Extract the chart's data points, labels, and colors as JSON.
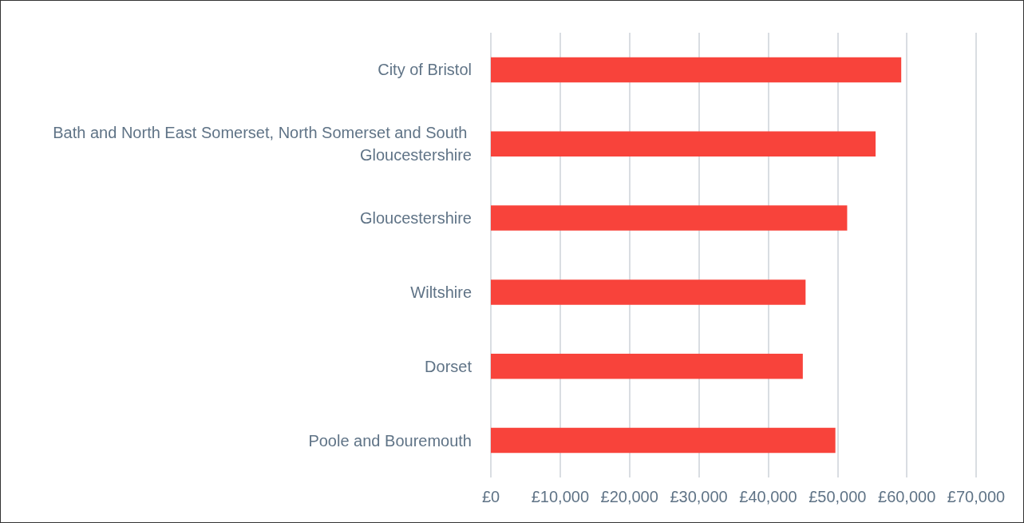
{
  "chart_data": {
    "type": "bar",
    "orientation": "horizontal",
    "categories": [
      "City of Bristol",
      "Bath and North East Somerset, North Somerset and South Gloucestershire",
      "Gloucestershire",
      "Wiltshire",
      "Dorset",
      "Poole and Bouremouth"
    ],
    "values": [
      59200,
      55500,
      51400,
      45400,
      45000,
      49700
    ],
    "color": "#f8433b",
    "xlim": [
      0,
      70000
    ],
    "xticks": [
      {
        "value": 0,
        "label": "£0"
      },
      {
        "value": 10000,
        "label": "£10,000"
      },
      {
        "value": 20000,
        "label": "£20,000"
      },
      {
        "value": 30000,
        "label": "£30,000"
      },
      {
        "value": 40000,
        "label": "£40,000"
      },
      {
        "value": 50000,
        "label": "£50,000"
      },
      {
        "value": 60000,
        "label": "£60,000"
      },
      {
        "value": 70000,
        "label": "£70,000"
      }
    ],
    "grid": "x"
  }
}
